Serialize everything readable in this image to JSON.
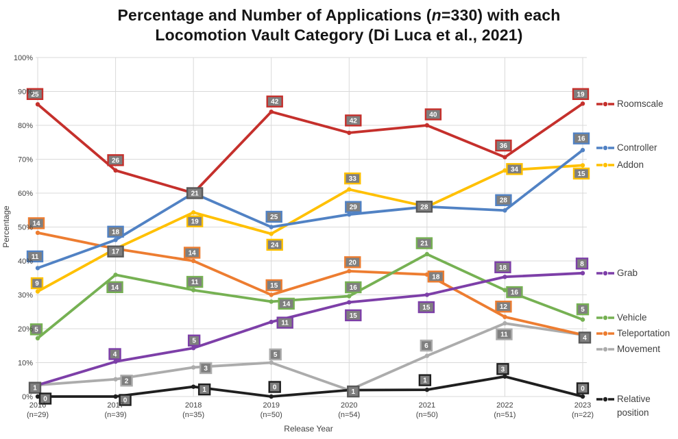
{
  "title": {
    "line1_prefix": "Percentage and Number of Applications (",
    "line1_italic": "n",
    "line1_suffix": "=330) with each",
    "line2": "Locomotion Vault Category (Di Luca et al., 2021)"
  },
  "y_axis": {
    "label": "Percentage",
    "ticks": [
      "0%",
      "10%",
      "20%",
      "30%",
      "40%",
      "50%",
      "60%",
      "70%",
      "80%",
      "90%",
      "100%"
    ]
  },
  "x_axis": {
    "label": "Release Year",
    "categories": [
      {
        "year": "2016",
        "n": "(n=29)"
      },
      {
        "year": "2017",
        "n": "(n=39)"
      },
      {
        "year": "2018",
        "n": "(n=35)"
      },
      {
        "year": "2019",
        "n": "(n=50)"
      },
      {
        "year": "2020",
        "n": "(n=54)"
      },
      {
        "year": "2021",
        "n": "(n=50)"
      },
      {
        "year": "2022",
        "n": "(n=51)"
      },
      {
        "year": "2023",
        "n": "(n=22)"
      }
    ]
  },
  "chart_data": {
    "type": "line",
    "title": "Percentage and Number of Applications (n=330) with each Locomotion Vault Category (Di Luca et al., 2021)",
    "xlabel": "Release Year",
    "ylabel": "Percentage",
    "ylim": [
      0,
      100
    ],
    "grid": true,
    "legend_position": "right",
    "categories": [
      "2016 (n=29)",
      "2017 (n=39)",
      "2018 (n=35)",
      "2019 (n=50)",
      "2020 (n=54)",
      "2021 (n=50)",
      "2022 (n=51)",
      "2023 (n=22)"
    ],
    "sample_sizes": [
      29,
      39,
      35,
      50,
      54,
      50,
      51,
      22
    ],
    "total_n": 330,
    "series": [
      {
        "name": "Roomscale",
        "color": "#C5302C",
        "counts": [
          25,
          26,
          21,
          42,
          42,
          40,
          36,
          19
        ],
        "percents": [
          86.2,
          66.7,
          60.0,
          84.0,
          77.8,
          80.0,
          70.6,
          86.4
        ]
      },
      {
        "name": "Controller",
        "color": "#5182C4",
        "counts": [
          11,
          18,
          21,
          25,
          29,
          28,
          28,
          16
        ],
        "percents": [
          37.9,
          46.2,
          60.0,
          50.0,
          53.7,
          56.0,
          54.9,
          72.7
        ]
      },
      {
        "name": "Addon",
        "color": "#FFC000",
        "counts": [
          9,
          17,
          19,
          24,
          33,
          28,
          34,
          15
        ],
        "percents": [
          31.0,
          43.6,
          54.3,
          48.0,
          61.1,
          56.0,
          66.7,
          68.2
        ]
      },
      {
        "name": "Grab",
        "color": "#7D3FA8",
        "counts": [
          1,
          4,
          5,
          11,
          15,
          15,
          18,
          8
        ],
        "percents": [
          3.4,
          10.3,
          14.3,
          22.0,
          27.8,
          30.0,
          35.3,
          36.4
        ]
      },
      {
        "name": "Vehicle",
        "color": "#76B153",
        "counts": [
          5,
          14,
          11,
          14,
          16,
          21,
          16,
          5
        ],
        "percents": [
          17.2,
          35.9,
          31.4,
          28.0,
          29.6,
          42.0,
          31.4,
          22.7
        ]
      },
      {
        "name": "Teleportation",
        "color": "#ED7D31",
        "counts": [
          14,
          17,
          14,
          15,
          20,
          18,
          12,
          4
        ],
        "percents": [
          48.3,
          43.6,
          40.0,
          30.0,
          37.0,
          36.0,
          23.5,
          18.2
        ]
      },
      {
        "name": "Movement",
        "color": "#ACACAC",
        "counts": [
          1,
          2,
          3,
          5,
          1,
          6,
          11,
          4
        ],
        "percents": [
          3.4,
          5.1,
          8.6,
          10.0,
          1.9,
          12.0,
          21.6,
          18.2
        ]
      },
      {
        "name": "Relative position",
        "color": "#1F1F1F",
        "counts": [
          0,
          0,
          1,
          0,
          1,
          1,
          3,
          0
        ],
        "percents": [
          0.0,
          0.0,
          2.9,
          0.0,
          1.9,
          2.0,
          5.9,
          0.0
        ]
      }
    ],
    "point_label_style": {
      "fill": "#7F7F7F",
      "text_color": "#FFFFFF",
      "shared_border": "#595959"
    }
  }
}
